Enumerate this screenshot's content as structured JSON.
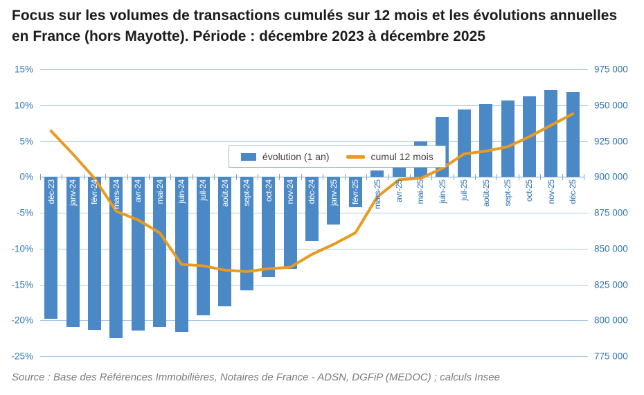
{
  "title": "Focus sur les volumes de transactions cumulés sur 12 mois et les évolutions annuelles en France (hors Mayotte). Période : décembre 2023 à décembre 2025",
  "source": "Source : Base des Références Immobilières, Notaires de France - ADSN, DGFiP (MEDOC) ; calculs Insee",
  "colors": {
    "bar": "#4A88C6",
    "line": "#E99A20",
    "axis_text": "#2E74B5",
    "grid": "#A8C7E6",
    "zero_axis": "#7AA3CC",
    "legend_border": "#9DB3CC",
    "title_text": "#1C1C1C",
    "source_text": "#7B7B7B"
  },
  "chart_data": {
    "type": "bar",
    "subtype": "combo bar + line, dual axis",
    "categories": [
      "déc-23",
      "janv-24",
      "févr-24",
      "mars-24",
      "avr-24",
      "mai-24",
      "juin-24",
      "juil-24",
      "août-24",
      "sept-24",
      "oct-24",
      "nov-24",
      "déc-24",
      "janv-25",
      "févr-25",
      "mars-25",
      "avr-25",
      "mai-25",
      "juin-25",
      "juil-25",
      "août-25",
      "sept-25",
      "oct-25",
      "nov-25",
      "déc-25"
    ],
    "series": [
      {
        "name": "évolution (1 an)",
        "type": "bar",
        "axis": "left",
        "unit": "%",
        "values": [
          -19.8,
          -20.9,
          -21.3,
          -22.5,
          -21.4,
          -20.9,
          -21.6,
          -19.3,
          -18.0,
          -15.8,
          -14.0,
          -12.8,
          -9.0,
          -6.6,
          -4.2,
          0.9,
          3.2,
          5.0,
          8.3,
          9.4,
          10.2,
          10.7,
          11.2,
          12.1,
          11.8
        ]
      },
      {
        "name": "cumul 12 mois",
        "type": "line",
        "axis": "right",
        "unit": "transactions",
        "values": [
          932000,
          916000,
          899000,
          876000,
          870000,
          861000,
          839000,
          838000,
          835000,
          834000,
          836000,
          837000,
          846000,
          853000,
          861000,
          886000,
          898000,
          899000,
          906000,
          916000,
          918000,
          921000,
          928000,
          936000,
          944000
        ]
      }
    ],
    "left_axis": {
      "min": -25,
      "max": 15,
      "tick_values": [
        15,
        10,
        5,
        0,
        -5,
        -10,
        -15,
        -20,
        -25
      ],
      "tick_labels": [
        "15%",
        "10%",
        "5%",
        "0%",
        "-5%",
        "-10%",
        "-15%",
        "-20%",
        "-25%"
      ]
    },
    "right_axis": {
      "min": 775000,
      "max": 975000,
      "tick_values": [
        975000,
        950000,
        925000,
        900000,
        875000,
        850000,
        825000,
        800000,
        775000
      ],
      "tick_labels": [
        "975 000",
        "950 000",
        "925 000",
        "900 000",
        "875 000",
        "850 000",
        "825 000",
        "800 000",
        "775 000"
      ]
    },
    "grid": true,
    "legend_position": "top-center"
  }
}
